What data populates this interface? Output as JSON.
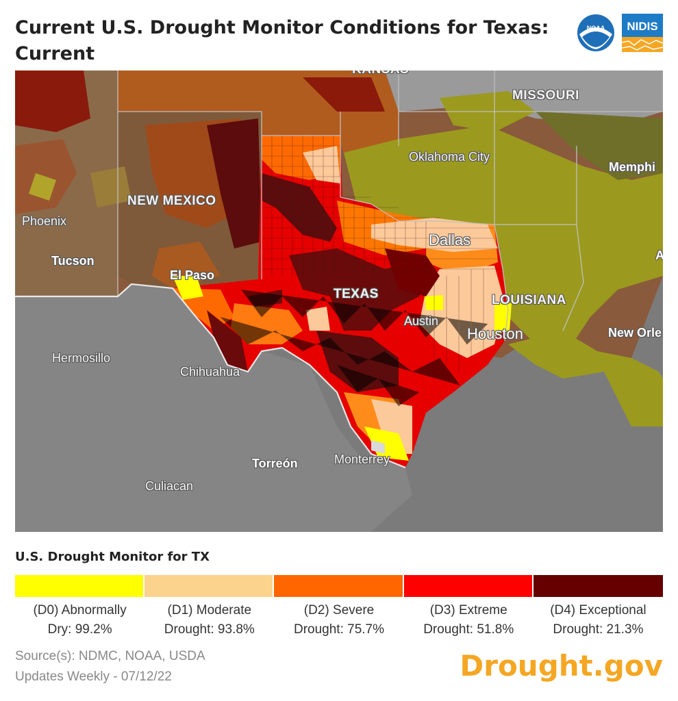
{
  "header": {
    "title": "Current U.S. Drought Monitor Conditions for Texas: Current",
    "logos": [
      {
        "name": "noaa-logo",
        "text": "NOAA"
      },
      {
        "name": "nidis-logo",
        "text": "NIDIS"
      }
    ]
  },
  "map": {
    "labels": {
      "new_mexico": "NEW MEXICO",
      "texas": "TEXAS",
      "missouri": "MISSOURI",
      "louisiana": "LOUISIANA",
      "kansas": "KANSAS",
      "oklahoma_city": "Oklahoma City",
      "memphis": "Memphi",
      "phoenix": "Phoenix",
      "tucson": "Tucson",
      "el_paso": "El Paso",
      "dallas": "Dallas",
      "austin": "Austin",
      "houston": "Houston",
      "new_orleans": "New Orle",
      "hermosillo": "Hermosillo",
      "chihuahua": "Chihuahua",
      "torreon": "Torreón",
      "monterrey": "Monterrey",
      "culiacan": "Culiacan",
      "edge_a": "A"
    },
    "colors": {
      "D0": "#ffff00",
      "D1": "#fcd37f",
      "D2": "#ffaa00",
      "D3": "#e60000",
      "D4": "#730000",
      "ocean": "#7d7d7d",
      "none": "#a6a6a6"
    }
  },
  "legend": {
    "title": "U.S. Drought Monitor for TX",
    "items": [
      {
        "line1": "(D0) Abnormally",
        "line2": "Dry: 99.2%",
        "color": "#ffff00"
      },
      {
        "line1": "(D1) Moderate",
        "line2": "Drought: 93.8%",
        "color": "#fcd38c"
      },
      {
        "line1": "(D2) Severe",
        "line2": "Drought: 75.7%",
        "color": "#ff6600"
      },
      {
        "line1": "(D3) Extreme",
        "line2": "Drought: 51.8%",
        "color": "#ff0000"
      },
      {
        "line1": "(D4) Exceptional",
        "line2": "Drought: 21.3%",
        "color": "#660000"
      }
    ]
  },
  "footer": {
    "source": "Source(s): NDMC, NOAA, USDA",
    "updates": "Updates Weekly - 07/12/22",
    "brand": "Drought.gov"
  }
}
